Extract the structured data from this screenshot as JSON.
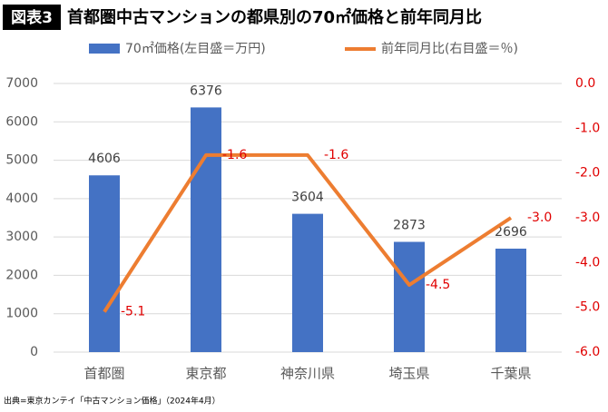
{
  "chart_data": {
    "type": "combo",
    "badge": "図表3",
    "title": "首都圏中古マンションの都県別の70㎡価格と前年同月比",
    "source": "出典=東京カンテイ「中古マンション価格」（2024年4月）",
    "categories": [
      "首都圏",
      "東京都",
      "神奈川県",
      "埼玉県",
      "千葉県"
    ],
    "series": [
      {
        "name": "70㎡価格(左目盛＝万円)",
        "type": "bar",
        "color": "#4472c4",
        "values": [
          4606,
          6376,
          3604,
          2873,
          2696
        ]
      },
      {
        "name": "前年同月比(右目盛＝％)",
        "type": "line",
        "axis": "y2",
        "color": "#ed7d31",
        "label_color": "#e00000",
        "values": [
          -5.1,
          -1.6,
          -1.6,
          -4.5,
          -3.0
        ],
        "value_labels": [
          "-5.1",
          "-1.6",
          "-1.6",
          "-4.5",
          "-3.0"
        ]
      }
    ],
    "ylim": [
      0,
      7000
    ],
    "yticks": [
      0,
      1000,
      2000,
      3000,
      4000,
      5000,
      6000,
      7000
    ],
    "y2lim": [
      -6,
      0
    ],
    "y2ticks": [
      {
        "value": 0,
        "label": "0.0"
      },
      {
        "value": -1,
        "label": "-1.0"
      },
      {
        "value": -2,
        "label": "-2.0"
      },
      {
        "value": -3,
        "label": "-3.0"
      },
      {
        "value": -4,
        "label": "-4.0"
      },
      {
        "value": -5,
        "label": "-5.0"
      },
      {
        "value": -6,
        "label": "-6.0"
      }
    ],
    "y2tick_color": "#e00000",
    "grid": true
  }
}
